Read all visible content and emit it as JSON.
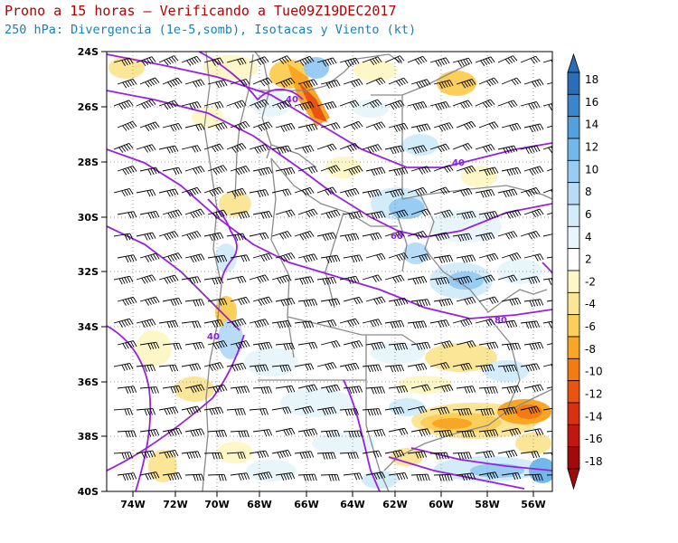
{
  "header": {
    "title": "Prono a 15 horas — Verificando a Tue09Z19DEC2017",
    "subtitle": "250 hPa: Divergencia (1e-5,somb), Isotacas y Viento (kt)"
  },
  "map": {
    "lat_range": [
      -40,
      -24
    ],
    "lon_range": [
      -75.5,
      -55
    ],
    "lat_ticks": [
      "24S",
      "26S",
      "28S",
      "30S",
      "32S",
      "34S",
      "36S",
      "38S",
      "40S"
    ],
    "lon_ticks": [
      "74W",
      "72W",
      "70W",
      "68W",
      "66W",
      "64W",
      "62W",
      "60W",
      "58W",
      "56W"
    ],
    "isotach_labels": [
      "40",
      "40",
      "60",
      "80",
      "40"
    ],
    "colors": {
      "isotach": "#9a20e0",
      "borders": "#888888",
      "barbs": "#000000",
      "grid": "#999999"
    }
  },
  "colorbar": {
    "labels": [
      "18",
      "16",
      "14",
      "12",
      "10",
      "8",
      "6",
      "4",
      "2",
      "-2",
      "-4",
      "-6",
      "-8",
      "-10",
      "-12",
      "-14",
      "-16",
      "-18"
    ],
    "colors": [
      "#2a6eb8",
      "#3a86cc",
      "#52a0dc",
      "#72b8ea",
      "#98ccf2",
      "#b8dcf7",
      "#d2ecfa",
      "#e8f6fc",
      "#ffffff",
      "#fdf6c6",
      "#fbe596",
      "#fbcf5a",
      "#f9a624",
      "#f47b14",
      "#ea5410",
      "#d83010",
      "#c01810",
      "#a00a0a"
    ]
  }
}
